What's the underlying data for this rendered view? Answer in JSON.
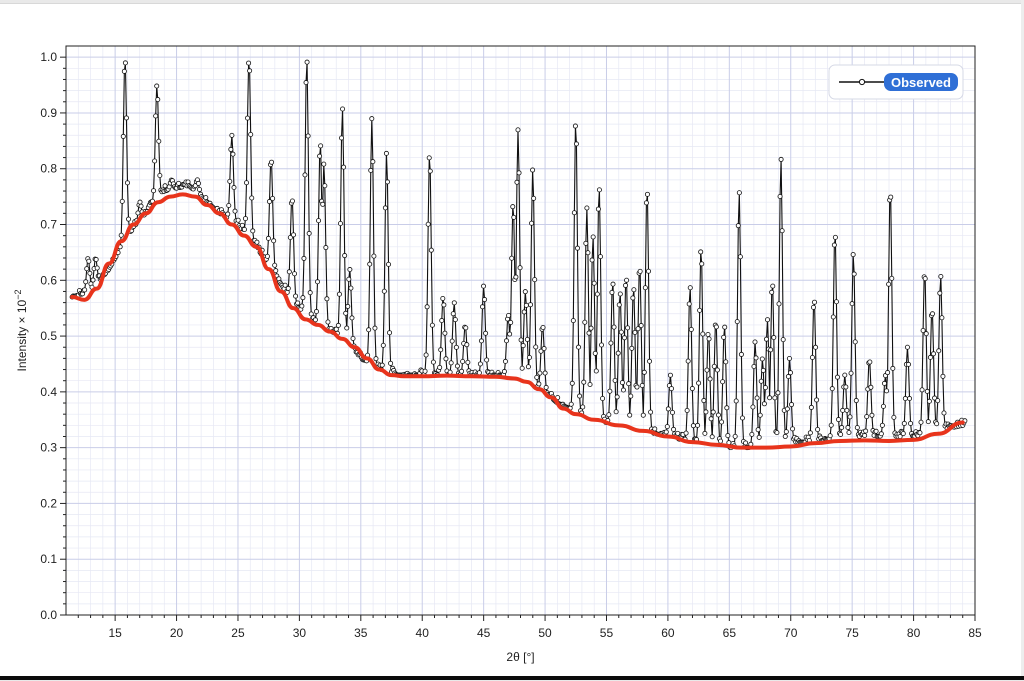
{
  "chart_data": {
    "type": "line",
    "title": "",
    "xlabel": "2θ [°]",
    "ylabel_main": "Intensity × 10",
    "ylabel_exp": "−2",
    "xlim": [
      11,
      85
    ],
    "ylim": [
      0,
      1.02
    ],
    "xticks": [
      15,
      20,
      25,
      30,
      35,
      40,
      45,
      50,
      55,
      60,
      65,
      70,
      75,
      80,
      85
    ],
    "yticks": [
      0.0,
      0.1,
      0.2,
      0.3,
      0.4,
      0.5,
      0.6,
      0.7,
      0.8,
      0.9,
      1.0
    ],
    "ytick_labels": [
      "0.0",
      "0.1",
      "0.2",
      "0.3",
      "0.4",
      "0.5",
      "0.6",
      "0.7",
      "0.8",
      "0.9",
      "1.0"
    ],
    "grid": true,
    "legend": {
      "position": "top-right",
      "entries": [
        "Observed"
      ]
    },
    "colors": {
      "observed": "#111111",
      "fit": "#e8341c",
      "legend_badge": "#2f6fd6",
      "grid_major": "#c9cde8",
      "grid_minor": "#e6e8f4"
    },
    "series": [
      {
        "name": "Observed",
        "style": "line-with-circle-markers",
        "baseline": [
          [
            11.5,
            0.57
          ],
          [
            13,
            0.58
          ],
          [
            14.5,
            0.62
          ],
          [
            16,
            0.68
          ],
          [
            17.5,
            0.72
          ],
          [
            19,
            0.76
          ],
          [
            21,
            0.77
          ],
          [
            22,
            0.75
          ],
          [
            23.5,
            0.72
          ],
          [
            25,
            0.7
          ],
          [
            26.5,
            0.66
          ],
          [
            28,
            0.61
          ],
          [
            29.5,
            0.56
          ],
          [
            31,
            0.53
          ],
          [
            32.5,
            0.51
          ],
          [
            34,
            0.49
          ],
          [
            35,
            0.46
          ],
          [
            36.5,
            0.44
          ],
          [
            38,
            0.43
          ],
          [
            40,
            0.43
          ],
          [
            42,
            0.43
          ],
          [
            44,
            0.43
          ],
          [
            46,
            0.43
          ],
          [
            47,
            0.43
          ],
          [
            48.5,
            0.42
          ],
          [
            50,
            0.4
          ],
          [
            51,
            0.38
          ],
          [
            52,
            0.37
          ],
          [
            54,
            0.35
          ],
          [
            56,
            0.34
          ],
          [
            58,
            0.33
          ],
          [
            60,
            0.32
          ],
          [
            62,
            0.31
          ],
          [
            64,
            0.3
          ],
          [
            66,
            0.3
          ],
          [
            68,
            0.3
          ],
          [
            70,
            0.31
          ],
          [
            72,
            0.31
          ],
          [
            74,
            0.32
          ],
          [
            76,
            0.32
          ],
          [
            78,
            0.32
          ],
          [
            80,
            0.32
          ],
          [
            82,
            0.33
          ],
          [
            84,
            0.34
          ]
        ],
        "peaks": [
          [
            12.8,
            0.64
          ],
          [
            13.4,
            0.64
          ],
          [
            15.8,
            1.0
          ],
          [
            17.0,
            0.74
          ],
          [
            18.4,
            0.95
          ],
          [
            19.6,
            0.78
          ],
          [
            21.7,
            0.78
          ],
          [
            24.5,
            0.86
          ],
          [
            25.9,
            1.0
          ],
          [
            27.7,
            0.82
          ],
          [
            29.4,
            0.75
          ],
          [
            30.6,
            1.0
          ],
          [
            31.7,
            0.85
          ],
          [
            32.0,
            0.81
          ],
          [
            33.5,
            0.91
          ],
          [
            34.1,
            0.62
          ],
          [
            35.9,
            0.89
          ],
          [
            37.1,
            0.83
          ],
          [
            40.6,
            0.83
          ],
          [
            41.7,
            0.57
          ],
          [
            42.6,
            0.56
          ],
          [
            43.5,
            0.52
          ],
          [
            45.0,
            0.59
          ],
          [
            47.0,
            0.54
          ],
          [
            47.4,
            0.74
          ],
          [
            47.8,
            0.87
          ],
          [
            48.4,
            0.58
          ],
          [
            49.0,
            0.8
          ],
          [
            49.8,
            0.52
          ],
          [
            52.5,
            0.89
          ],
          [
            53.4,
            0.73
          ],
          [
            53.9,
            0.68
          ],
          [
            54.4,
            0.77
          ],
          [
            55.5,
            0.6
          ],
          [
            56.1,
            0.58
          ],
          [
            56.6,
            0.61
          ],
          [
            57.2,
            0.59
          ],
          [
            57.7,
            0.63
          ],
          [
            58.3,
            0.77
          ],
          [
            60.2,
            0.43
          ],
          [
            61.8,
            0.59
          ],
          [
            62.7,
            0.66
          ],
          [
            63.3,
            0.51
          ],
          [
            63.9,
            0.53
          ],
          [
            64.6,
            0.52
          ],
          [
            65.8,
            0.76
          ],
          [
            67.1,
            0.49
          ],
          [
            67.7,
            0.46
          ],
          [
            68.1,
            0.53
          ],
          [
            68.5,
            0.6
          ],
          [
            69.2,
            0.82
          ],
          [
            69.9,
            0.46
          ],
          [
            71.9,
            0.57
          ],
          [
            73.6,
            0.69
          ],
          [
            74.4,
            0.43
          ],
          [
            75.1,
            0.65
          ],
          [
            76.4,
            0.46
          ],
          [
            77.7,
            0.43
          ],
          [
            78.1,
            0.77
          ],
          [
            79.5,
            0.48
          ],
          [
            80.9,
            0.62
          ],
          [
            81.5,
            0.55
          ],
          [
            82.2,
            0.61
          ],
          [
            83.0,
            0.34
          ]
        ]
      },
      {
        "name": "",
        "style": "smooth-red-line",
        "points": [
          [
            11.5,
            0.57
          ],
          [
            12.5,
            0.565
          ],
          [
            13.5,
            0.585
          ],
          [
            14.5,
            0.63
          ],
          [
            15.5,
            0.67
          ],
          [
            16.5,
            0.7
          ],
          [
            17.5,
            0.72
          ],
          [
            18.5,
            0.74
          ],
          [
            19.5,
            0.75
          ],
          [
            20.5,
            0.754
          ],
          [
            21.5,
            0.75
          ],
          [
            22.5,
            0.735
          ],
          [
            23.5,
            0.72
          ],
          [
            24.5,
            0.7
          ],
          [
            25.5,
            0.68
          ],
          [
            26.5,
            0.66
          ],
          [
            27.5,
            0.62
          ],
          [
            28.5,
            0.58
          ],
          [
            29.5,
            0.55
          ],
          [
            30.5,
            0.53
          ],
          [
            31.5,
            0.52
          ],
          [
            32.5,
            0.508
          ],
          [
            33.5,
            0.495
          ],
          [
            34.5,
            0.48
          ],
          [
            35.5,
            0.46
          ],
          [
            36.5,
            0.44
          ],
          [
            37.5,
            0.43
          ],
          [
            38.5,
            0.428
          ],
          [
            40,
            0.428
          ],
          [
            42,
            0.429
          ],
          [
            44,
            0.428
          ],
          [
            46,
            0.427
          ],
          [
            47.5,
            0.424
          ],
          [
            48.5,
            0.418
          ],
          [
            49.5,
            0.405
          ],
          [
            50.5,
            0.39
          ],
          [
            51.5,
            0.37
          ],
          [
            52.5,
            0.36
          ],
          [
            54,
            0.35
          ],
          [
            56,
            0.34
          ],
          [
            58,
            0.33
          ],
          [
            60,
            0.32
          ],
          [
            62,
            0.31
          ],
          [
            64,
            0.305
          ],
          [
            66,
            0.3
          ],
          [
            68,
            0.3
          ],
          [
            70,
            0.302
          ],
          [
            72,
            0.308
          ],
          [
            74,
            0.312
          ],
          [
            76,
            0.313
          ],
          [
            78,
            0.312
          ],
          [
            80,
            0.314
          ],
          [
            82,
            0.325
          ],
          [
            84,
            0.345
          ]
        ]
      }
    ]
  }
}
